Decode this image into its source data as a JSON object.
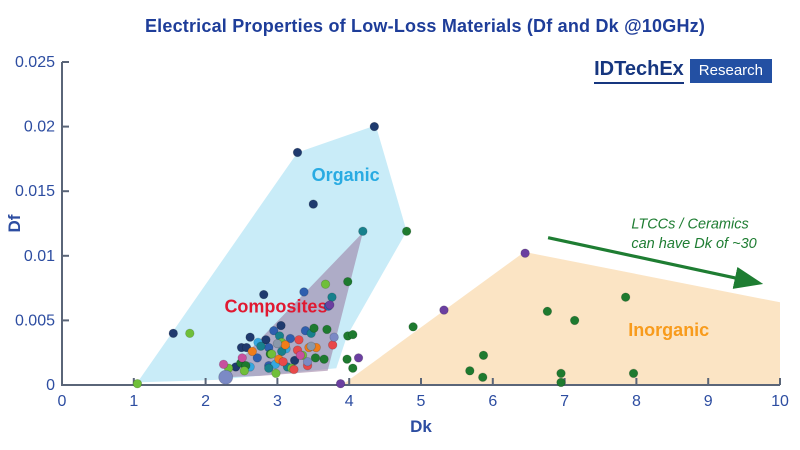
{
  "header": {
    "title": "Electrical Properties of Low-Loss Materials (Df and Dk @10GHz)",
    "title_color": "#1e3d99"
  },
  "logo": {
    "brand": "IDTechEx",
    "badge": "Research",
    "brand_color": "#16367f",
    "badge_bg": "#2350a3",
    "badge_text_color": "#ffffff"
  },
  "chart_data": {
    "type": "scatter",
    "xlabel": "Dk",
    "ylabel": "Df",
    "xlim": [
      0,
      10
    ],
    "ylim": [
      0,
      0.025
    ],
    "grid": false,
    "x_ticks": [
      0,
      1,
      2,
      3,
      4,
      5,
      6,
      7,
      8,
      9,
      10
    ],
    "x_tick_labels": [
      "0",
      "1",
      "2",
      "3",
      "4",
      "5",
      "6",
      "7",
      "8",
      "9",
      "10"
    ],
    "y_ticks": [
      0,
      0.005,
      0.01,
      0.015,
      0.02,
      0.025
    ],
    "y_tick_labels": [
      "0",
      "0.005",
      "0.01",
      "0.015",
      "0.02",
      "0.025"
    ],
    "axis_color": "#5a6578",
    "tick_label_color": "#2d4da1",
    "regions": [
      {
        "id": "organic",
        "label": "Organic",
        "label_color": "#29abe2",
        "fill": "#c9ecf8",
        "opacity": 1,
        "label_x": 3.95,
        "label_y": 0.0158,
        "polygon": [
          [
            1.05,
            0.0002
          ],
          [
            3.28,
            0.018
          ],
          [
            4.37,
            0.0201
          ],
          [
            4.8,
            0.0119
          ],
          [
            3.97,
            0.0038
          ],
          [
            3.82,
            0.0013
          ],
          [
            2.15,
            0.0004
          ]
        ]
      },
      {
        "id": "composites",
        "label": "Composites",
        "label_color": "#e01931",
        "fill": "#97799f",
        "opacity": 0.55,
        "label_x": 2.98,
        "label_y": 0.0056,
        "polygon": [
          [
            4.19,
            0.0118
          ],
          [
            3.7,
            0.0011
          ],
          [
            2.75,
            0.0007
          ],
          [
            2.25,
            0.0006
          ]
        ]
      },
      {
        "id": "inorganic",
        "label": "Inorganic",
        "label_color": "#f89b1c",
        "fill": "#fbe4c4",
        "opacity": 1,
        "label_x": 8.45,
        "label_y": 0.0038,
        "polygon": [
          [
            3.9,
            0.0
          ],
          [
            6.44,
            0.0103
          ],
          [
            10.0,
            0.0064
          ],
          [
            10.0,
            0.0
          ]
        ]
      }
    ],
    "annotation": {
      "lines": [
        "LTCCs / Ceramics",
        "can have Dk of ~30"
      ],
      "color": "#1e7d32",
      "x": 7.93,
      "y": 0.0121,
      "line_step": 0.00148
    },
    "arrow": {
      "from": [
        6.77,
        0.0114
      ],
      "to": [
        9.7,
        0.0079
      ],
      "color": "#1e7d32"
    },
    "palette": {
      "navy": "#1f3a6e",
      "blue": "#2f5fae",
      "cyan": "#35a8e0",
      "teal": "#17808c",
      "green": "#1e7a2f",
      "lime": "#6fbf3a",
      "orange": "#ef7d1a",
      "red": "#e8494a",
      "magenta": "#c8509e",
      "purple": "#6b3fa0",
      "slate": "#7b8ac5",
      "gray": "#8a98aa"
    },
    "points": [
      [
        4.35,
        0.02,
        "navy"
      ],
      [
        3.28,
        0.018,
        "navy"
      ],
      [
        3.5,
        0.014,
        "navy"
      ],
      [
        2.81,
        0.007,
        "navy"
      ],
      [
        1.55,
        0.004,
        "navy"
      ],
      [
        2.5,
        0.0029,
        "navy"
      ],
      [
        2.57,
        0.0029,
        "navy"
      ],
      [
        2.84,
        0.0035,
        "navy"
      ],
      [
        2.42,
        0.0014,
        "navy"
      ],
      [
        3.24,
        0.0019,
        "navy"
      ],
      [
        2.62,
        0.0037,
        "navy"
      ],
      [
        3.05,
        0.0046,
        "navy"
      ],
      [
        3.37,
        0.0072,
        "blue"
      ],
      [
        3.71,
        0.0061,
        "blue"
      ],
      [
        2.72,
        0.0021,
        "blue"
      ],
      [
        2.88,
        0.0029,
        "blue"
      ],
      [
        2.88,
        0.0015,
        "blue"
      ],
      [
        3.39,
        0.0042,
        "blue"
      ],
      [
        2.95,
        0.0042,
        "blue"
      ],
      [
        3.18,
        0.0036,
        "blue"
      ],
      [
        2.62,
        0.0014,
        "cyan"
      ],
      [
        2.97,
        0.0016,
        "cyan"
      ],
      [
        2.73,
        0.0033,
        "cyan"
      ],
      [
        3.12,
        0.0028,
        "cyan"
      ],
      [
        4.19,
        0.0119,
        "teal"
      ],
      [
        3.76,
        0.0068,
        "teal"
      ],
      [
        3.03,
        0.0038,
        "teal"
      ],
      [
        2.77,
        0.003,
        "teal"
      ],
      [
        3.06,
        0.0026,
        "teal"
      ],
      [
        3.14,
        0.0014,
        "teal"
      ],
      [
        3.47,
        0.004,
        "teal"
      ],
      [
        2.88,
        0.0013,
        "teal"
      ],
      [
        4.8,
        0.0119,
        "green"
      ],
      [
        3.98,
        0.008,
        "green"
      ],
      [
        3.98,
        0.0038,
        "green"
      ],
      [
        3.97,
        0.002,
        "green"
      ],
      [
        4.05,
        0.0013,
        "green"
      ],
      [
        3.53,
        0.0021,
        "green"
      ],
      [
        3.65,
        0.002,
        "green"
      ],
      [
        2.49,
        0.0017,
        "green"
      ],
      [
        2.56,
        0.0015,
        "green"
      ],
      [
        3.51,
        0.0044,
        "green"
      ],
      [
        3.69,
        0.0043,
        "green"
      ],
      [
        4.05,
        0.0039,
        "green"
      ],
      [
        2.9,
        0.0024,
        "green"
      ],
      [
        4.89,
        0.0045,
        "green"
      ],
      [
        5.87,
        0.0023,
        "green"
      ],
      [
        5.68,
        0.0011,
        "green"
      ],
      [
        5.86,
        0.0006,
        "green"
      ],
      [
        6.76,
        0.0057,
        "green"
      ],
      [
        7.14,
        0.005,
        "green"
      ],
      [
        7.85,
        0.0068,
        "green"
      ],
      [
        7.96,
        0.0009,
        "green"
      ],
      [
        6.95,
        0.0009,
        "green"
      ],
      [
        6.95,
        0.0002,
        "green"
      ],
      [
        1.05,
        0.0001,
        "lime"
      ],
      [
        1.78,
        0.004,
        "lime"
      ],
      [
        3.67,
        0.0078,
        "lime"
      ],
      [
        2.32,
        0.0013,
        "lime"
      ],
      [
        2.54,
        0.0011,
        "lime"
      ],
      [
        2.92,
        0.0024,
        "lime"
      ],
      [
        3.35,
        0.0023,
        "lime"
      ],
      [
        3.06,
        0.0033,
        "lime"
      ],
      [
        2.98,
        0.0009,
        "lime"
      ],
      [
        3.2,
        0.0013,
        "lime"
      ],
      [
        3.11,
        0.0031,
        "orange"
      ],
      [
        3.44,
        0.0029,
        "orange"
      ],
      [
        3.54,
        0.0029,
        "orange"
      ],
      [
        2.65,
        0.0026,
        "orange"
      ],
      [
        3.02,
        0.002,
        "orange"
      ],
      [
        3.3,
        0.0035,
        "red"
      ],
      [
        3.77,
        0.0031,
        "red"
      ],
      [
        3.28,
        0.0027,
        "red"
      ],
      [
        3.42,
        0.0015,
        "red"
      ],
      [
        3.23,
        0.0012,
        "red"
      ],
      [
        3.08,
        0.0018,
        "red"
      ],
      [
        2.25,
        0.0016,
        "magenta"
      ],
      [
        3.32,
        0.0023,
        "magenta"
      ],
      [
        2.51,
        0.0021,
        "magenta"
      ],
      [
        3.73,
        0.0062,
        "purple"
      ],
      [
        4.13,
        0.0021,
        "purple"
      ],
      [
        3.88,
        0.0001,
        "purple"
      ],
      [
        5.32,
        0.0058,
        "purple"
      ],
      [
        6.45,
        0.0102,
        "purple"
      ],
      [
        2.28,
        0.0006,
        "slate",
        7
      ],
      [
        3.79,
        0.0037,
        "slate"
      ],
      [
        3.42,
        0.0018,
        "slate"
      ],
      [
        3.0,
        0.0032,
        "gray"
      ],
      [
        3.47,
        0.003,
        "gray"
      ]
    ]
  }
}
